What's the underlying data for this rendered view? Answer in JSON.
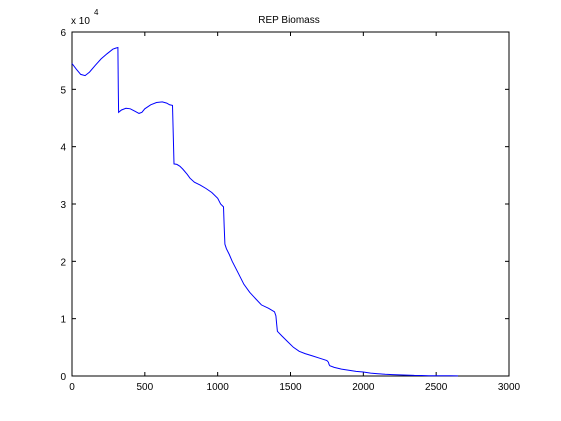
{
  "chart_data": {
    "type": "line",
    "title": "REP Biomass",
    "xlabel": "",
    "ylabel": "",
    "xlim": [
      0,
      3000
    ],
    "ylim": [
      0,
      6
    ],
    "y_multiplier": "x 10",
    "y_multiplier_exponent": "4",
    "x_ticks": [
      0,
      500,
      1000,
      1500,
      2000,
      2500,
      3000
    ],
    "y_ticks": [
      0,
      1,
      2,
      3,
      4,
      5,
      6
    ],
    "grid": false,
    "line_color": "#0000ff",
    "series": [
      {
        "x": [
          0,
          30,
          60,
          90,
          120,
          160,
          200,
          240,
          280,
          300,
          315,
          318,
          320,
          340,
          370,
          400,
          430,
          460,
          480,
          500,
          540,
          580,
          620,
          650,
          670,
          690,
          695,
          700,
          720,
          740,
          760,
          790,
          810,
          840,
          880,
          920,
          960,
          1000,
          1020,
          1040,
          1045,
          1050,
          1060,
          1080,
          1100,
          1140,
          1180,
          1220,
          1260,
          1300,
          1350,
          1390,
          1400,
          1405,
          1410,
          1440,
          1480,
          1520,
          1560,
          1600,
          1650,
          1700,
          1750,
          1760,
          1765,
          1770,
          1800,
          1850,
          1900,
          1950,
          2000,
          2050,
          2100,
          2150,
          2200,
          2250,
          2300,
          2350,
          2400,
          2450,
          2500,
          2550,
          2600,
          2650
        ],
        "y": [
          5.45,
          5.35,
          5.26,
          5.24,
          5.3,
          5.42,
          5.53,
          5.62,
          5.7,
          5.72,
          5.73,
          5.0,
          4.6,
          4.64,
          4.67,
          4.66,
          4.62,
          4.58,
          4.6,
          4.66,
          4.73,
          4.77,
          4.78,
          4.76,
          4.73,
          4.72,
          4.25,
          3.7,
          3.69,
          3.66,
          3.61,
          3.52,
          3.45,
          3.38,
          3.33,
          3.27,
          3.2,
          3.1,
          3.0,
          2.95,
          2.6,
          2.3,
          2.22,
          2.12,
          2.0,
          1.8,
          1.6,
          1.46,
          1.35,
          1.24,
          1.18,
          1.12,
          1.05,
          0.9,
          0.78,
          0.7,
          0.6,
          0.5,
          0.43,
          0.39,
          0.35,
          0.31,
          0.27,
          0.24,
          0.2,
          0.18,
          0.15,
          0.12,
          0.1,
          0.08,
          0.07,
          0.05,
          0.04,
          0.03,
          0.025,
          0.02,
          0.015,
          0.01,
          0.008,
          0.006,
          0.005,
          0.004,
          0.003,
          0.002
        ]
      }
    ]
  }
}
